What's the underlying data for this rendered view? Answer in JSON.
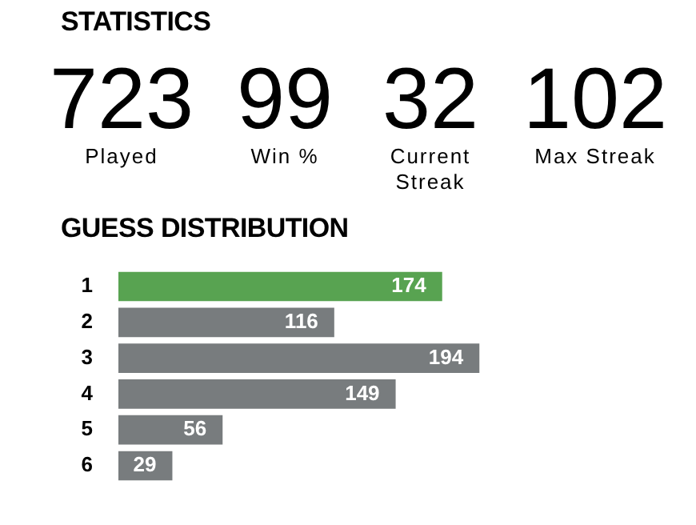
{
  "chart_data": [
    {
      "type": "other",
      "title": "STATISTICS",
      "categories": [
        "Played",
        "Win %",
        "Current Streak",
        "Max Streak"
      ],
      "values": [
        723,
        99,
        32,
        102
      ],
      "data_labels": true
    },
    {
      "type": "bar",
      "orientation": "horizontal",
      "title": "GUESS DISTRIBUTION",
      "categories": [
        "1",
        "2",
        "3",
        "4",
        "5",
        "6"
      ],
      "values": [
        174,
        116,
        194,
        149,
        56,
        29
      ],
      "colors": [
        "#58a351",
        "#787c7e",
        "#787c7e",
        "#787c7e",
        "#787c7e",
        "#787c7e"
      ],
      "data_labels": true,
      "tick_labels": "y",
      "legend": false
    }
  ]
}
